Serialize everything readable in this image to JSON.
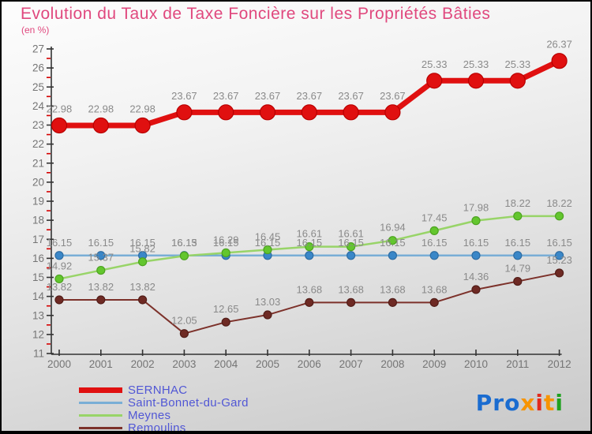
{
  "header": {
    "title": "Evolution du Taux de Taxe Foncière sur les Propriétés Bâties",
    "subtitle": "(en %)"
  },
  "colors": {
    "title_text": "#e0487e",
    "legend_text": "#5157d5",
    "axis_line": "#333333",
    "axis_label": "#757575",
    "minor_tick": "#d40000",
    "data_label": "#8a8a8a",
    "background_top": "#fdfdfd",
    "background_bottom": "#c9c9c9",
    "bottom_bar": "#000000"
  },
  "chart_data": {
    "type": "line",
    "title": "Evolution du Taux de Taxe Foncière sur les Propriétés Bâties",
    "ylabel": "(en %)",
    "xlabel": "",
    "categories": [
      "2000",
      "2001",
      "2002",
      "2003",
      "2004",
      "2005",
      "2006",
      "2007",
      "2008",
      "2009",
      "2010",
      "2011",
      "2012"
    ],
    "ylim": [
      11,
      27
    ],
    "y_tick_step": 1,
    "grid": false,
    "legend_position": "bottom-left",
    "data_labels": true,
    "series": [
      {
        "name": "SERNHAC",
        "color": "#e01010",
        "dot_color": "#e01010",
        "dot_stroke": "#b80000",
        "line_width": 7,
        "dot_radius": 9.5,
        "values": [
          22.98,
          22.98,
          22.98,
          23.67,
          23.67,
          23.67,
          23.67,
          23.67,
          23.67,
          25.33,
          25.33,
          25.33,
          26.37
        ]
      },
      {
        "name": "Saint-Bonnet-du-Gard",
        "color": "#79aed6",
        "dot_color": "#3a87c8",
        "dot_stroke": "#2e6da3",
        "line_width": 2.5,
        "dot_radius": 5,
        "values": [
          16.15,
          16.15,
          16.15,
          16.15,
          16.15,
          16.15,
          16.15,
          16.15,
          16.15,
          16.15,
          16.15,
          16.15,
          16.15
        ]
      },
      {
        "name": "Meynes",
        "color": "#98d468",
        "dot_color": "#63c62e",
        "dot_stroke": "#4da321",
        "line_width": 2.5,
        "dot_radius": 5,
        "values": [
          14.92,
          15.37,
          15.82,
          16.13,
          16.29,
          16.45,
          16.61,
          16.61,
          16.94,
          17.45,
          17.98,
          18.22,
          18.22
        ]
      },
      {
        "name": "Remoulins",
        "color": "#7c312a",
        "dot_color": "#6e2a24",
        "dot_stroke": "#521d18",
        "line_width": 2,
        "dot_radius": 5,
        "values": [
          13.82,
          13.82,
          13.82,
          12.05,
          12.65,
          13.03,
          13.68,
          13.68,
          13.68,
          13.68,
          14.36,
          14.79,
          15.23
        ]
      }
    ]
  },
  "logo": {
    "name": "Proxiti",
    "letters": [
      {
        "ch": "P",
        "color": "#1a6cd0"
      },
      {
        "ch": "r",
        "color": "#1a6cd0"
      },
      {
        "ch": "o",
        "color": "#1a6cd0"
      },
      {
        "ch": "x",
        "color": "#f79400"
      },
      {
        "ch": "i",
        "color": "#e22a1d"
      },
      {
        "ch": "t",
        "color": "#f79400"
      },
      {
        "ch": "i",
        "color": "#1fa11f"
      }
    ]
  }
}
